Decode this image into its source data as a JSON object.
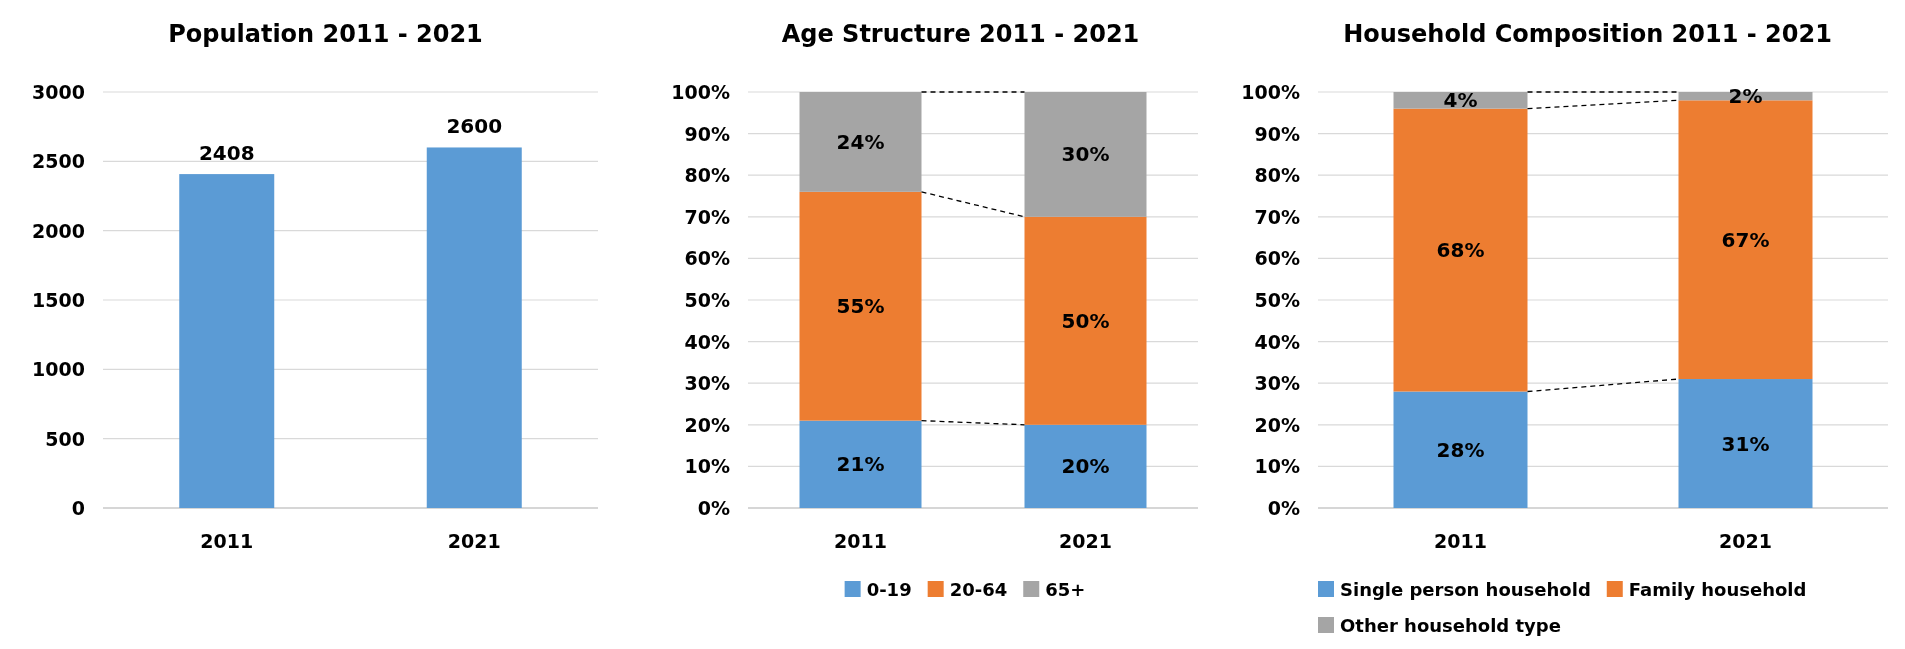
{
  "chart_data": [
    {
      "type": "bar",
      "title": "Population 2011 - 2021",
      "categories": [
        "2011",
        "2021"
      ],
      "values": [
        2408,
        2600
      ],
      "color": "#5b9bd5",
      "ylim": [
        0,
        3000
      ],
      "yticks": [
        0,
        500,
        1000,
        1500,
        2000,
        2500,
        3000
      ],
      "grid": "y",
      "data_labels": true,
      "legend": false
    },
    {
      "type": "bar",
      "title": "Age Structure 2011 - 2021",
      "categories": [
        "2011",
        "2021"
      ],
      "stacked": true,
      "series": [
        {
          "name": "0-19",
          "color": "#5b9bd5",
          "values": [
            21,
            20
          ],
          "value_labels": [
            "21%",
            "20%"
          ]
        },
        {
          "name": "20-64",
          "color": "#ed7d31",
          "values": [
            55,
            50
          ],
          "value_labels": [
            "55%",
            "50%"
          ]
        },
        {
          "name": "65+",
          "color": "#a5a5a5",
          "values": [
            24,
            30
          ],
          "value_labels": [
            "24%",
            "30%"
          ]
        }
      ],
      "ylim": [
        0,
        100
      ],
      "yticks": [
        {
          "value": 0,
          "label": "0%"
        },
        {
          "value": 10,
          "label": "10%"
        },
        {
          "value": 20,
          "label": "20%"
        },
        {
          "value": 30,
          "label": "30%"
        },
        {
          "value": 40,
          "label": "40%"
        },
        {
          "value": 50,
          "label": "50%"
        },
        {
          "value": 60,
          "label": "60%"
        },
        {
          "value": 70,
          "label": "70%"
        },
        {
          "value": 80,
          "label": "80%"
        },
        {
          "value": 90,
          "label": "90%"
        },
        {
          "value": 100,
          "label": "100%"
        }
      ],
      "grid": "y",
      "legend": "bottom"
    },
    {
      "type": "bar",
      "title": "Household Composition 2011 - 2021",
      "categories": [
        "2011",
        "2021"
      ],
      "stacked": true,
      "series": [
        {
          "name": "Single person household",
          "color": "#5b9bd5",
          "values": [
            28,
            31
          ],
          "value_labels": [
            "28%",
            "31%"
          ]
        },
        {
          "name": "Family household",
          "color": "#ed7d31",
          "values": [
            68,
            67
          ],
          "value_labels": [
            "68%",
            "67%"
          ]
        },
        {
          "name": "Other household type",
          "color": "#a5a5a5",
          "values": [
            4,
            2
          ],
          "value_labels": [
            "4%",
            "2%"
          ]
        }
      ],
      "ylim": [
        0,
        100
      ],
      "yticks": [
        {
          "value": 0,
          "label": "0%"
        },
        {
          "value": 10,
          "label": "10%"
        },
        {
          "value": 20,
          "label": "20%"
        },
        {
          "value": 30,
          "label": "30%"
        },
        {
          "value": 40,
          "label": "40%"
        },
        {
          "value": 50,
          "label": "50%"
        },
        {
          "value": 60,
          "label": "60%"
        },
        {
          "value": 70,
          "label": "70%"
        },
        {
          "value": 80,
          "label": "80%"
        },
        {
          "value": 90,
          "label": "90%"
        },
        {
          "value": 100,
          "label": "100%"
        }
      ],
      "grid": "y",
      "legend": "bottom"
    }
  ]
}
